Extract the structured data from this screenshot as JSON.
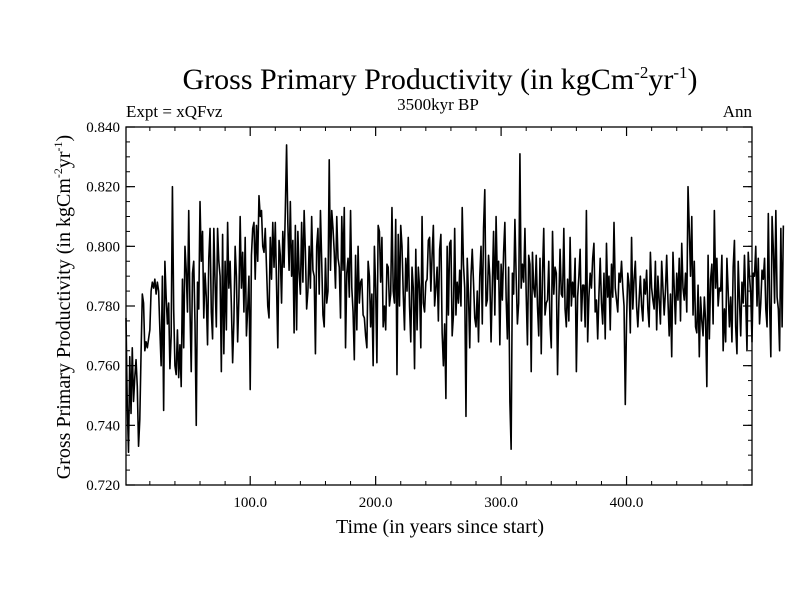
{
  "chart_data": {
    "type": "line",
    "title_main": "Gross Primary Productivity (in kgCm",
    "title_sup1": "-2",
    "title_mid": "yr",
    "title_sup2": "-1",
    "title_close": ")",
    "subtitle_center": "3500kyr BP",
    "subtitle_left": "Expt = xQFvz",
    "subtitle_right": "Ann",
    "xlabel": "Time (in years since start)",
    "ylabel_main": "Gross Primary Productivity (in kgCm",
    "ylabel_sup1": "-2",
    "ylabel_mid": "yr",
    "ylabel_sup2": "-1",
    "ylabel_close": ")",
    "xlim": [
      1,
      500
    ],
    "ylim": [
      0.72,
      0.84
    ],
    "x_ticks": [
      100,
      200,
      300,
      400
    ],
    "x_tick_labels": [
      "100.0",
      "200.0",
      "300.0",
      "400.0"
    ],
    "y_ticks": [
      0.72,
      0.74,
      0.76,
      0.78,
      0.8,
      0.82,
      0.84
    ],
    "y_tick_labels": [
      "0.720",
      "0.740",
      "0.760",
      "0.780",
      "0.800",
      "0.820",
      "0.840"
    ],
    "series": [
      {
        "name": "Ann",
        "x_start": 1,
        "x_step": 1,
        "values": [
          0.776,
          0.747,
          0.731,
          0.763,
          0.744,
          0.766,
          0.748,
          0.756,
          0.762,
          0.753,
          0.733,
          0.742,
          0.764,
          0.784,
          0.781,
          0.765,
          0.768,
          0.766,
          0.769,
          0.772,
          0.785,
          0.788,
          0.786,
          0.789,
          0.784,
          0.788,
          0.785,
          0.772,
          0.76,
          0.79,
          0.745,
          0.795,
          0.783,
          0.774,
          0.781,
          0.759,
          0.77,
          0.82,
          0.779,
          0.76,
          0.757,
          0.772,
          0.756,
          0.767,
          0.753,
          0.789,
          0.766,
          0.8,
          0.792,
          0.778,
          0.812,
          0.779,
          0.758,
          0.791,
          0.795,
          0.774,
          0.74,
          0.788,
          0.779,
          0.815,
          0.795,
          0.805,
          0.776,
          0.791,
          0.783,
          0.767,
          0.796,
          0.806,
          0.778,
          0.769,
          0.806,
          0.788,
          0.773,
          0.806,
          0.795,
          0.79,
          0.758,
          0.804,
          0.764,
          0.795,
          0.772,
          0.808,
          0.786,
          0.795,
          0.78,
          0.761,
          0.775,
          0.8,
          0.79,
          0.768,
          0.783,
          0.81,
          0.786,
          0.798,
          0.778,
          0.803,
          0.77,
          0.779,
          0.79,
          0.752,
          0.797,
          0.806,
          0.808,
          0.789,
          0.807,
          0.795,
          0.817,
          0.81,
          0.812,
          0.8,
          0.798,
          0.806,
          0.793,
          0.78,
          0.776,
          0.803,
          0.789,
          0.808,
          0.793,
          0.808,
          0.787,
          0.766,
          0.802,
          0.797,
          0.781,
          0.805,
          0.793,
          0.812,
          0.834,
          0.808,
          0.792,
          0.815,
          0.79,
          0.802,
          0.771,
          0.807,
          0.772,
          0.805,
          0.791,
          0.784,
          0.808,
          0.788,
          0.812,
          0.798,
          0.779,
          0.785,
          0.8,
          0.786,
          0.81,
          0.792,
          0.79,
          0.764,
          0.8,
          0.806,
          0.784,
          0.812,
          0.795,
          0.777,
          0.773,
          0.796,
          0.781,
          0.785,
          0.829,
          0.792,
          0.812,
          0.806,
          0.798,
          0.786,
          0.81,
          0.796,
          0.793,
          0.776,
          0.81,
          0.792,
          0.813,
          0.766,
          0.791,
          0.796,
          0.783,
          0.812,
          0.786,
          0.778,
          0.762,
          0.797,
          0.772,
          0.8,
          0.781,
          0.788,
          0.789,
          0.777,
          0.776,
          0.77,
          0.766,
          0.795,
          0.79,
          0.773,
          0.784,
          0.76,
          0.8,
          0.786,
          0.761,
          0.807,
          0.805,
          0.788,
          0.803,
          0.773,
          0.78,
          0.772,
          0.794,
          0.793,
          0.78,
          0.784,
          0.813,
          0.785,
          0.781,
          0.809,
          0.757,
          0.804,
          0.78,
          0.807,
          0.8,
          0.784,
          0.772,
          0.796,
          0.785,
          0.803,
          0.78,
          0.768,
          0.793,
          0.786,
          0.759,
          0.799,
          0.772,
          0.793,
          0.786,
          0.766,
          0.81,
          0.781,
          0.778,
          0.788,
          0.789,
          0.802,
          0.803,
          0.785,
          0.797,
          0.807,
          0.78,
          0.786,
          0.793,
          0.775,
          0.799,
          0.804,
          0.771,
          0.76,
          0.774,
          0.749,
          0.8,
          0.777,
          0.801,
          0.802,
          0.77,
          0.777,
          0.806,
          0.777,
          0.788,
          0.781,
          0.792,
          0.78,
          0.813,
          0.794,
          0.786,
          0.743,
          0.796,
          0.784,
          0.766,
          0.79,
          0.799,
          0.788,
          0.776,
          0.773,
          0.785,
          0.768,
          0.79,
          0.8,
          0.774,
          0.806,
          0.819,
          0.78,
          0.782,
          0.797,
          0.79,
          0.768,
          0.787,
          0.805,
          0.777,
          0.81,
          0.789,
          0.795,
          0.767,
          0.794,
          0.782,
          0.798,
          0.808,
          0.783,
          0.769,
          0.793,
          0.748,
          0.732,
          0.791,
          0.784,
          0.809,
          0.79,
          0.774,
          0.781,
          0.831,
          0.786,
          0.794,
          0.788,
          0.806,
          0.784,
          0.767,
          0.797,
          0.794,
          0.758,
          0.798,
          0.786,
          0.783,
          0.797,
          0.78,
          0.77,
          0.796,
          0.764,
          0.791,
          0.806,
          0.777,
          0.781,
          0.782,
          0.795,
          0.774,
          0.766,
          0.805,
          0.784,
          0.793,
          0.791,
          0.757,
          0.781,
          0.799,
          0.784,
          0.783,
          0.806,
          0.779,
          0.773,
          0.789,
          0.775,
          0.803,
          0.78,
          0.788,
          0.783,
          0.796,
          0.758,
          0.783,
          0.79,
          0.799,
          0.775,
          0.787,
          0.787,
          0.773,
          0.812,
          0.768,
          0.783,
          0.791,
          0.786,
          0.796,
          0.801,
          0.778,
          0.782,
          0.769,
          0.784,
          0.796,
          0.781,
          0.774,
          0.791,
          0.769,
          0.801,
          0.783,
          0.79,
          0.772,
          0.794,
          0.783,
          0.808,
          0.786,
          0.782,
          0.778,
          0.791,
          0.788,
          0.795,
          0.786,
          0.78,
          0.747,
          0.775,
          0.791,
          0.787,
          0.771,
          0.803,
          0.779,
          0.789,
          0.795,
          0.78,
          0.773,
          0.782,
          0.79,
          0.78,
          0.775,
          0.789,
          0.784,
          0.792,
          0.779,
          0.773,
          0.798,
          0.786,
          0.782,
          0.779,
          0.795,
          0.772,
          0.79,
          0.782,
          0.774,
          0.795,
          0.786,
          0.777,
          0.785,
          0.797,
          0.782,
          0.77,
          0.784,
          0.763,
          0.798,
          0.786,
          0.774,
          0.791,
          0.782,
          0.796,
          0.775,
          0.801,
          0.786,
          0.782,
          0.791,
          0.778,
          0.82,
          0.806,
          0.79,
          0.81,
          0.777,
          0.795,
          0.773,
          0.771,
          0.787,
          0.763,
          0.783,
          0.775,
          0.77,
          0.783,
          0.775,
          0.753,
          0.797,
          0.769,
          0.789,
          0.794,
          0.774,
          0.812,
          0.786,
          0.796,
          0.78,
          0.786,
          0.785,
          0.797,
          0.765,
          0.779,
          0.768,
          0.796,
          0.785,
          0.773,
          0.783,
          0.768,
          0.793,
          0.802,
          0.773,
          0.764,
          0.795,
          0.782,
          0.77,
          0.788,
          0.781,
          0.797,
          0.782,
          0.765,
          0.798,
          0.79,
          0.784,
          0.768,
          0.791,
          0.79,
          0.8,
          0.78,
          0.796,
          0.774,
          0.781,
          0.792,
          0.789,
          0.796,
          0.779,
          0.773,
          0.811,
          0.781,
          0.763,
          0.81,
          0.799,
          0.781,
          0.812,
          0.783,
          0.779,
          0.765,
          0.806,
          0.773,
          0.807
        ]
      }
    ]
  }
}
